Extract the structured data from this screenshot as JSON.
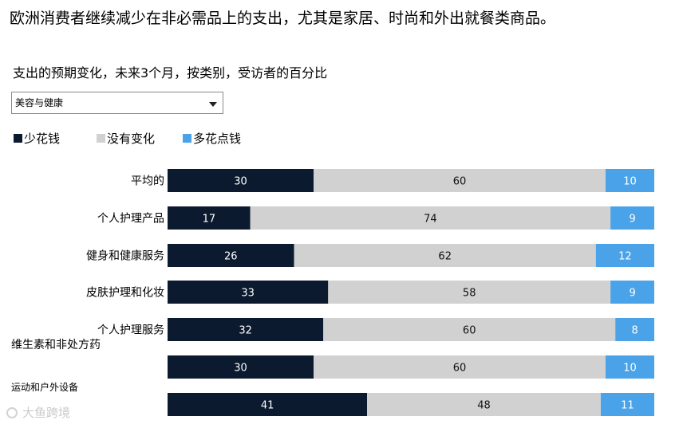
{
  "title": "欧洲消费者继续减少在非必需品上的支出，尤其是家居、时尚和外出就餐类商品。",
  "subtitle": "支出的预期变化，未来3个月，按类别，受访者的百分比",
  "dropdown": {
    "selected": "美容与健康"
  },
  "legend": [
    {
      "label": "少花钱",
      "color": "#0b1a2f"
    },
    {
      "label": "没有变化",
      "color": "#d1d1d1"
    },
    {
      "label": "多花点钱",
      "color": "#4aa3e8"
    }
  ],
  "watermark": "大鱼跨境",
  "chart_data": {
    "type": "bar",
    "orientation": "horizontal",
    "stacked": true,
    "categories": [
      "平均的",
      "个人护理产品",
      "健身和健康服务",
      "皮肤护理和化妆",
      "个人护理服务",
      "维生素和非处方药",
      "运动和户外设备"
    ],
    "series": [
      {
        "name": "少花钱",
        "color": "#0b1a2f",
        "values": [
          30,
          17,
          26,
          33,
          32,
          30,
          41
        ]
      },
      {
        "name": "没有变化",
        "color": "#d1d1d1",
        "values": [
          60,
          74,
          62,
          58,
          60,
          60,
          48
        ]
      },
      {
        "name": "多花点钱",
        "color": "#4aa3e8",
        "values": [
          10,
          9,
          12,
          9,
          8,
          10,
          11
        ]
      }
    ],
    "xlim": [
      0,
      100
    ]
  }
}
